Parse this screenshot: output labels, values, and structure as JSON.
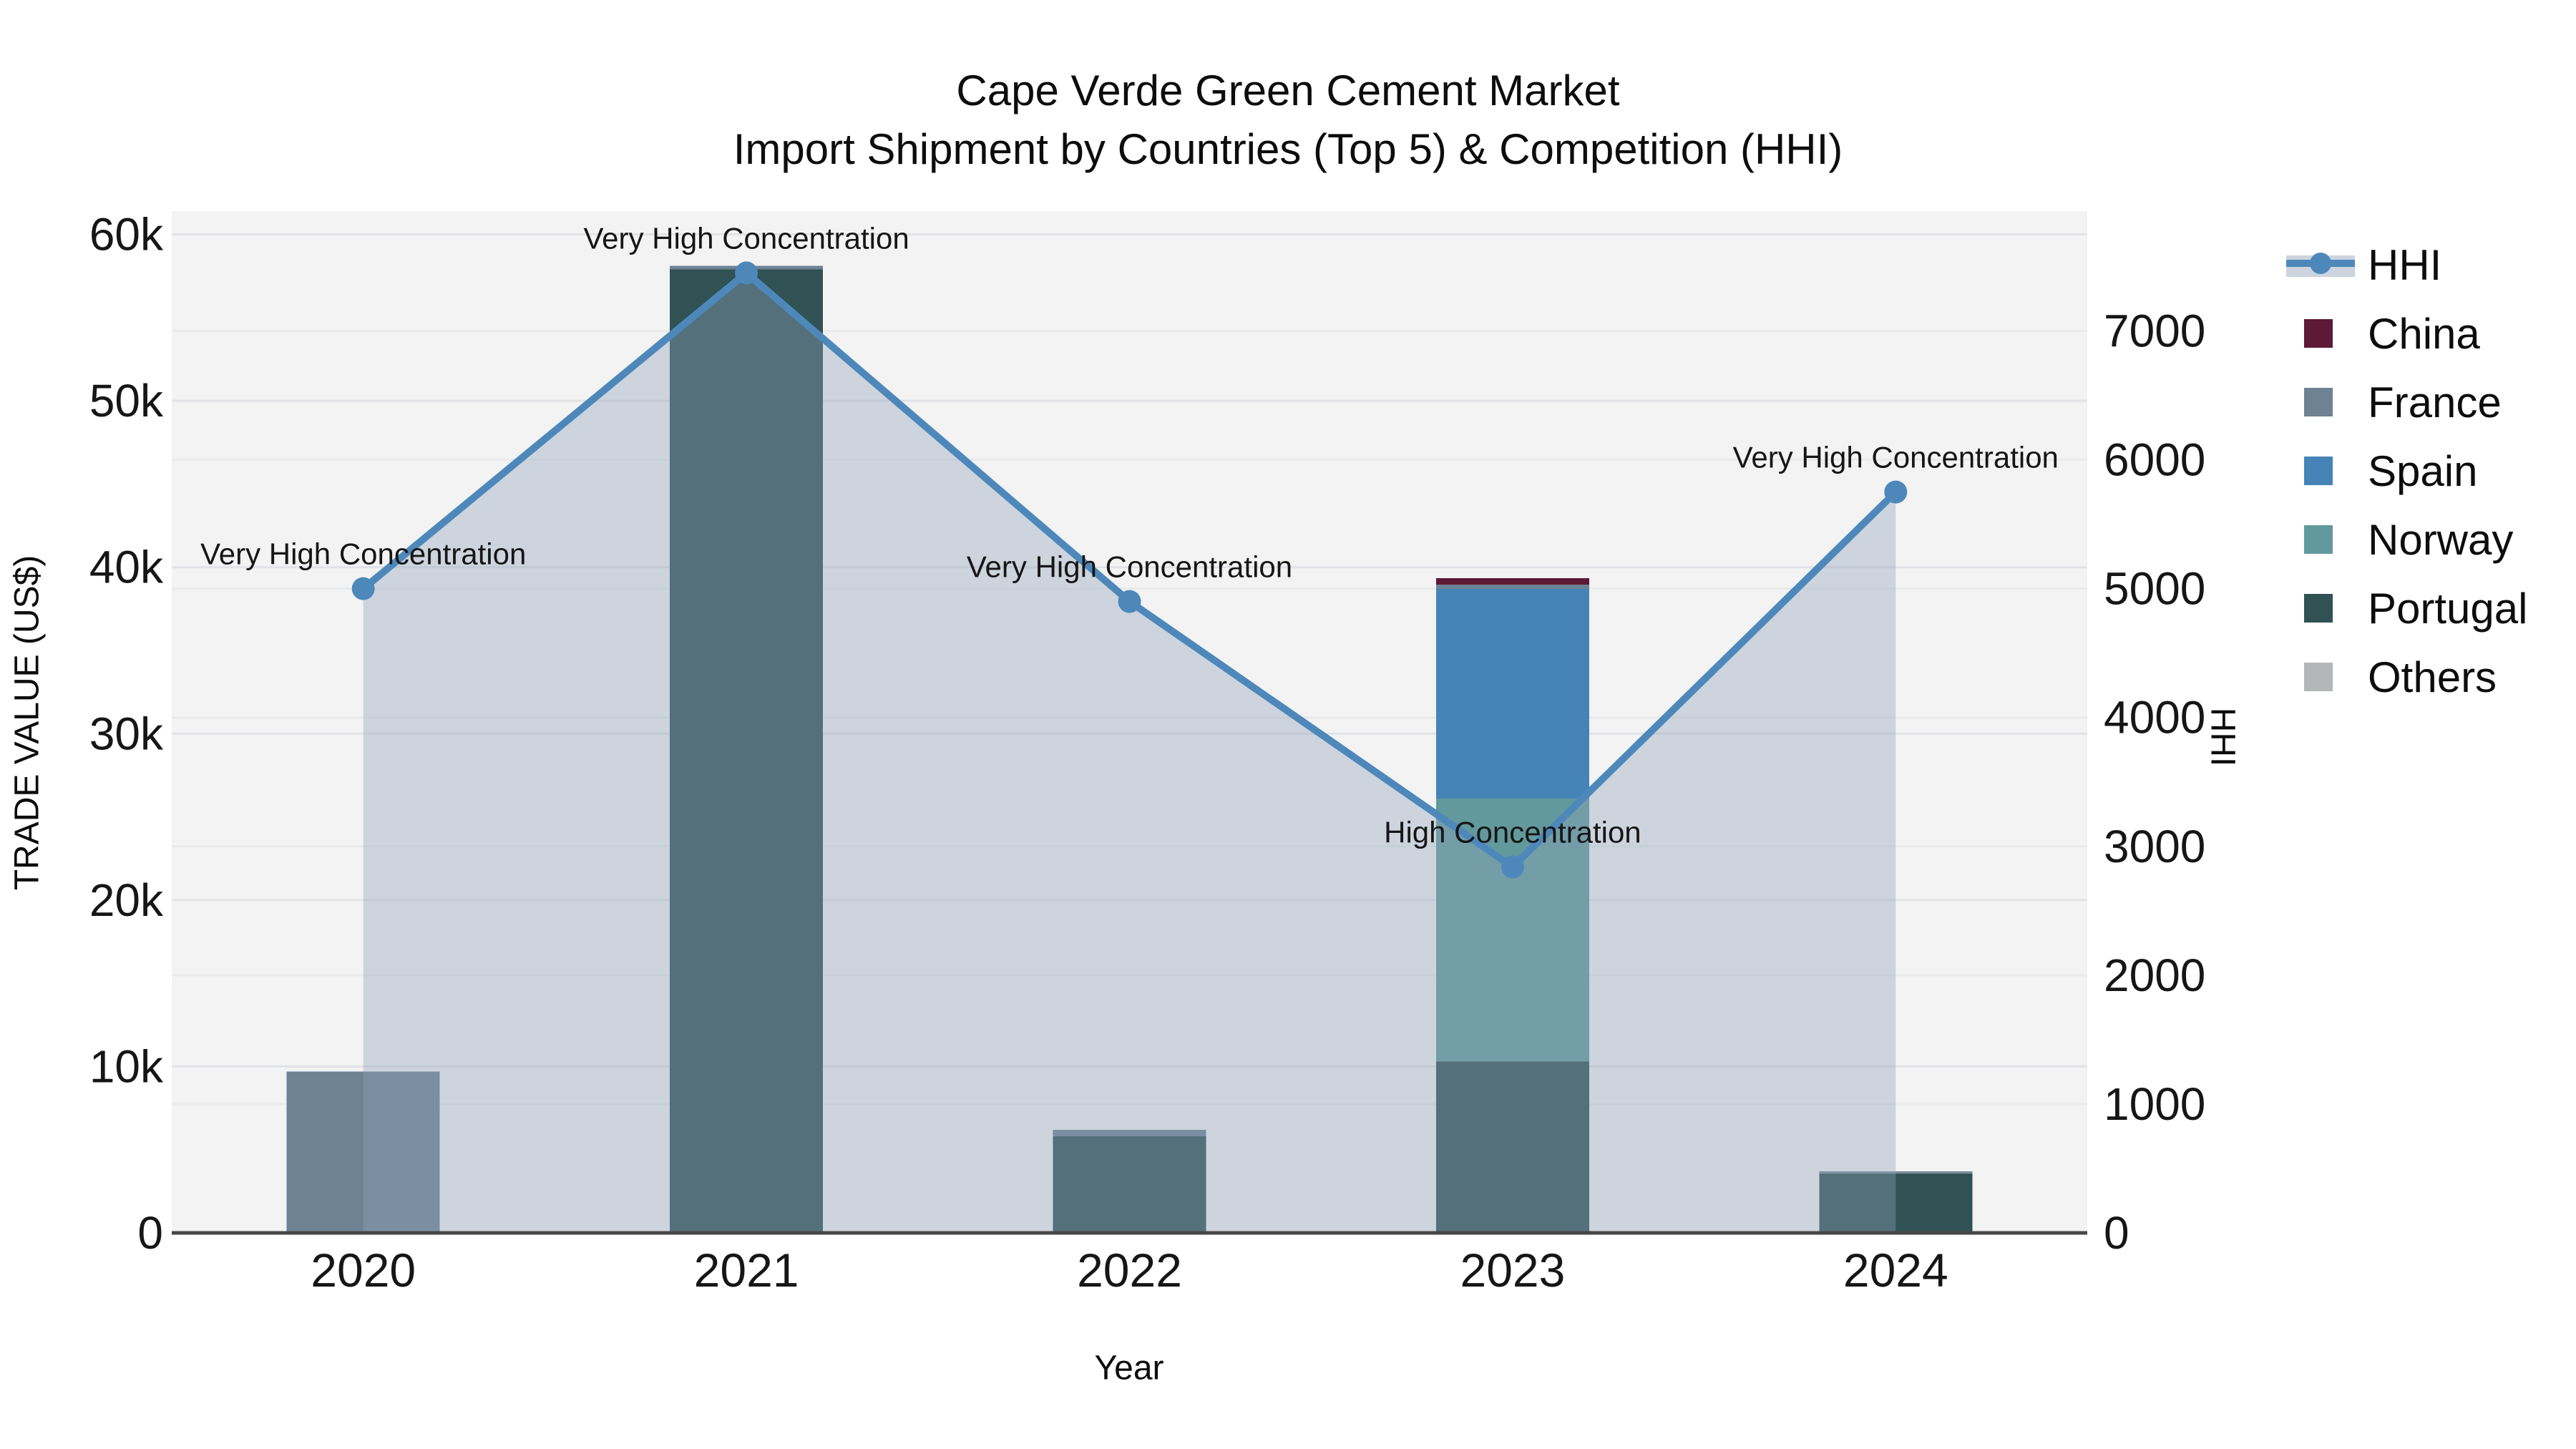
{
  "title": {
    "line1": "Cape Verde Green Cement Market",
    "line2": "Import Shipment by Countries (Top 5) & Competition (HHI)"
  },
  "axes": {
    "x": {
      "title": "Year",
      "categories": [
        "2020",
        "2021",
        "2022",
        "2023",
        "2024"
      ]
    },
    "y_left": {
      "title": "TRADE VALUE (US$)",
      "tick_labels": [
        "0",
        "10k",
        "20k",
        "30k",
        "40k",
        "50k",
        "60k"
      ],
      "tick_values": [
        0,
        10000,
        20000,
        30000,
        40000,
        50000,
        60000
      ],
      "range": [
        0,
        61400
      ]
    },
    "y_right": {
      "title": "HHI",
      "tick_labels": [
        "0",
        "1000",
        "2000",
        "3000",
        "4000",
        "5000",
        "6000",
        "7000"
      ],
      "tick_values": [
        0,
        1000,
        2000,
        3000,
        4000,
        5000,
        6000,
        7000
      ],
      "range": [
        0,
        7930
      ]
    }
  },
  "legend": {
    "items": [
      {
        "label": "HHI",
        "type": "line",
        "color": "#4e88bb",
        "band": "#cdd4df"
      },
      {
        "label": "China",
        "type": "swatch",
        "color": "#5e1936"
      },
      {
        "label": "France",
        "type": "swatch",
        "color": "#6e8294"
      },
      {
        "label": "Spain",
        "type": "swatch",
        "color": "#4684b8"
      },
      {
        "label": "Norway",
        "type": "swatch",
        "color": "#62999c"
      },
      {
        "label": "Portugal",
        "type": "swatch",
        "color": "#305254"
      },
      {
        "label": "Others",
        "type": "swatch",
        "color": "#b4b7b7"
      }
    ]
  },
  "chart_data": {
    "type": "bar+line",
    "title": "Cape Verde Green Cement Market — Import Shipment by Countries (Top 5) & Competition (HHI)",
    "xlabel": "Year",
    "ylabel_left": "TRADE VALUE (US$)",
    "ylabel_right": "HHI",
    "categories": [
      "2020",
      "2021",
      "2022",
      "2023",
      "2024"
    ],
    "stack_order_bottom_to_top": [
      "Others",
      "Portugal",
      "Norway",
      "Spain",
      "France",
      "China"
    ],
    "series": [
      {
        "name": "Others",
        "color": "#b4b7b7",
        "values": [
          0,
          0,
          0,
          0,
          0
        ]
      },
      {
        "name": "Portugal",
        "color": "#305254",
        "values": [
          0,
          57900,
          5800,
          10300,
          3600
        ]
      },
      {
        "name": "Norway",
        "color": "#62999c",
        "values": [
          0,
          0,
          0,
          15800,
          0
        ]
      },
      {
        "name": "Spain",
        "color": "#4684b8",
        "values": [
          0,
          0,
          0,
          12600,
          0
        ]
      },
      {
        "name": "France",
        "color": "#6e8294",
        "values": [
          9700,
          200,
          400,
          250,
          100
        ]
      },
      {
        "name": "China",
        "color": "#5e1936",
        "values": [
          0,
          0,
          0,
          400,
          0
        ]
      }
    ],
    "bar_totals": [
      9700,
      58100,
      6200,
      39350,
      3700
    ],
    "line_series": {
      "name": "HHI",
      "axis": "right",
      "color": "#4e88bb",
      "fill": "rgba(144,162,186,0.38)",
      "marker_radius": 16,
      "values": [
        5000,
        7450,
        4900,
        2840,
        5750
      ]
    },
    "annotations": [
      {
        "category": "2020",
        "text": "Very High Concentration"
      },
      {
        "category": "2021",
        "text": "Very High Concentration"
      },
      {
        "category": "2022",
        "text": "Very High Concentration"
      },
      {
        "category": "2023",
        "text": "High Concentration"
      },
      {
        "category": "2024",
        "text": "Very High Concentration"
      }
    ],
    "legend_position": "right",
    "grid": true,
    "axis_ranges": {
      "left": [
        0,
        61400
      ],
      "right": [
        0,
        7930
      ]
    }
  },
  "colors": {
    "background": "#ffffff",
    "plot_background": "#f2f3f2",
    "grid_left": "#e2e3e6",
    "grid_right": "#e9eaec",
    "axis_line": "#474747",
    "text": "#111111"
  }
}
